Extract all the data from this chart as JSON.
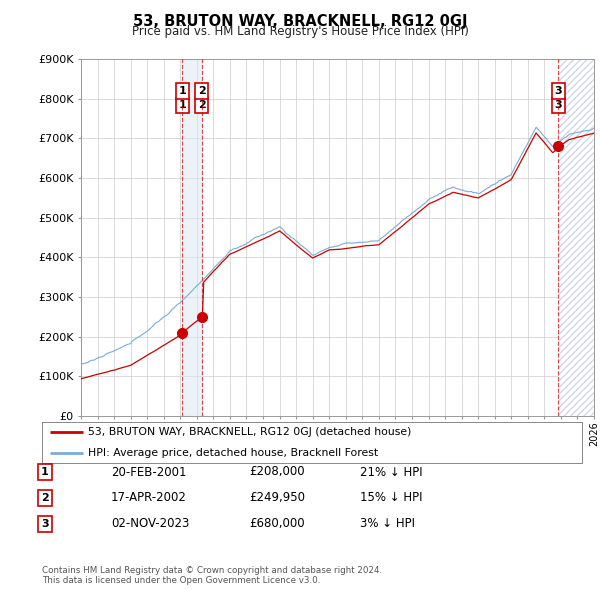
{
  "title": "53, BRUTON WAY, BRACKNELL, RG12 0GJ",
  "subtitle": "Price paid vs. HM Land Registry's House Price Index (HPI)",
  "ylim": [
    0,
    900000
  ],
  "yticks": [
    0,
    100000,
    200000,
    300000,
    400000,
    500000,
    600000,
    700000,
    800000,
    900000
  ],
  "ytick_labels": [
    "£0",
    "£100K",
    "£200K",
    "£300K",
    "£400K",
    "£500K",
    "£600K",
    "£700K",
    "£800K",
    "£900K"
  ],
  "hpi_color": "#7aadd4",
  "price_color": "#cc0000",
  "transactions": [
    {
      "label": "1",
      "date": "20-FEB-2001",
      "price": 208000,
      "pct": "21%",
      "x": 2001.12
    },
    {
      "label": "2",
      "date": "17-APR-2002",
      "price": 249950,
      "pct": "15%",
      "x": 2002.29
    },
    {
      "label": "3",
      "date": "02-NOV-2023",
      "price": 680000,
      "pct": "3%",
      "x": 2023.84
    }
  ],
  "legend_line1": "53, BRUTON WAY, BRACKNELL, RG12 0GJ (detached house)",
  "legend_line2": "HPI: Average price, detached house, Bracknell Forest",
  "footer": "Contains HM Land Registry data © Crown copyright and database right 2024.\nThis data is licensed under the Open Government Licence v3.0.",
  "background_color": "#ffffff",
  "grid_color": "#cccccc",
  "hatch_color": "#d0d8e8"
}
